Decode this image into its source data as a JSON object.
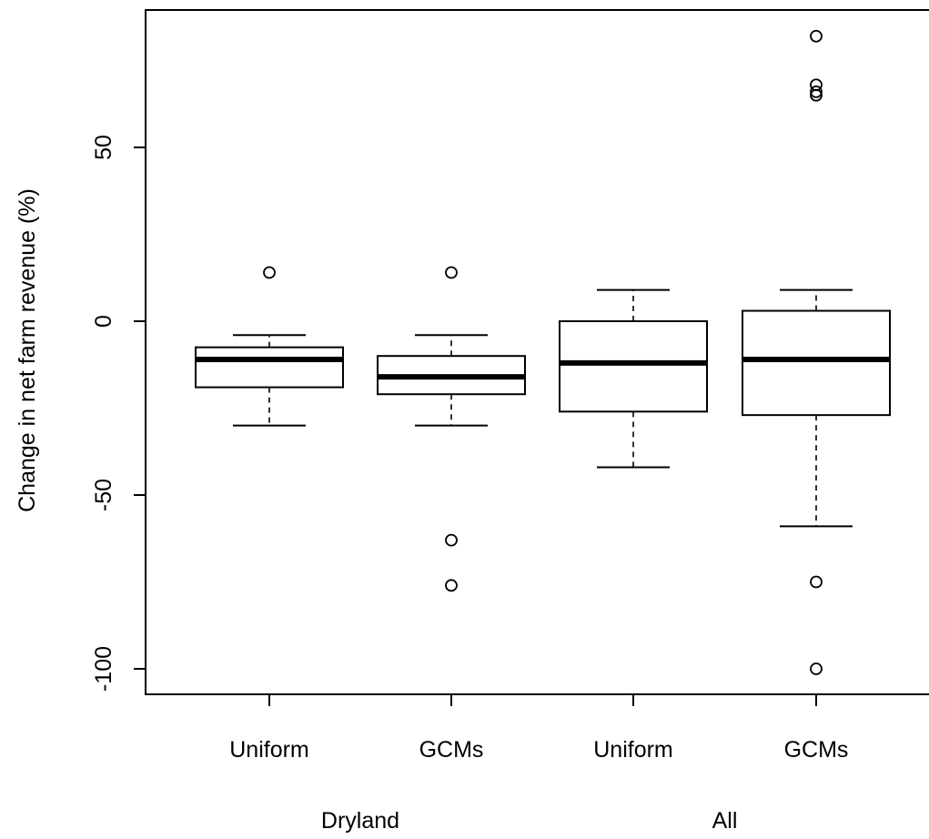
{
  "chart_data": {
    "type": "boxplot",
    "ylabel": "Change in net farm revenue (%)",
    "yticks": [
      -100,
      -50,
      0,
      50
    ],
    "ylim": [
      -103,
      90
    ],
    "categories": [
      "Uniform",
      "GCMs",
      "Uniform",
      "GCMs"
    ],
    "groups": [
      {
        "label": "Dryland",
        "members": [
          0,
          1
        ]
      },
      {
        "label": "All",
        "members": [
          2,
          3
        ]
      }
    ],
    "boxes": [
      {
        "label": "Uniform",
        "whisker_low": -30,
        "q1": -19,
        "median": -11,
        "q3": -7.5,
        "whisker_high": -4,
        "outliers": [
          14
        ]
      },
      {
        "label": "GCMs",
        "whisker_low": -30,
        "q1": -21,
        "median": -16,
        "q3": -10,
        "whisker_high": -4,
        "outliers": [
          14,
          -63,
          -76
        ]
      },
      {
        "label": "Uniform",
        "whisker_low": -42,
        "q1": -26,
        "median": -12,
        "q3": 0,
        "whisker_high": 9,
        "outliers": []
      },
      {
        "label": "GCMs",
        "whisker_low": -59,
        "q1": -27,
        "median": -11,
        "q3": 3,
        "whisker_high": 9,
        "outliers": [
          82,
          68,
          66,
          65,
          -75,
          -100
        ]
      }
    ]
  }
}
